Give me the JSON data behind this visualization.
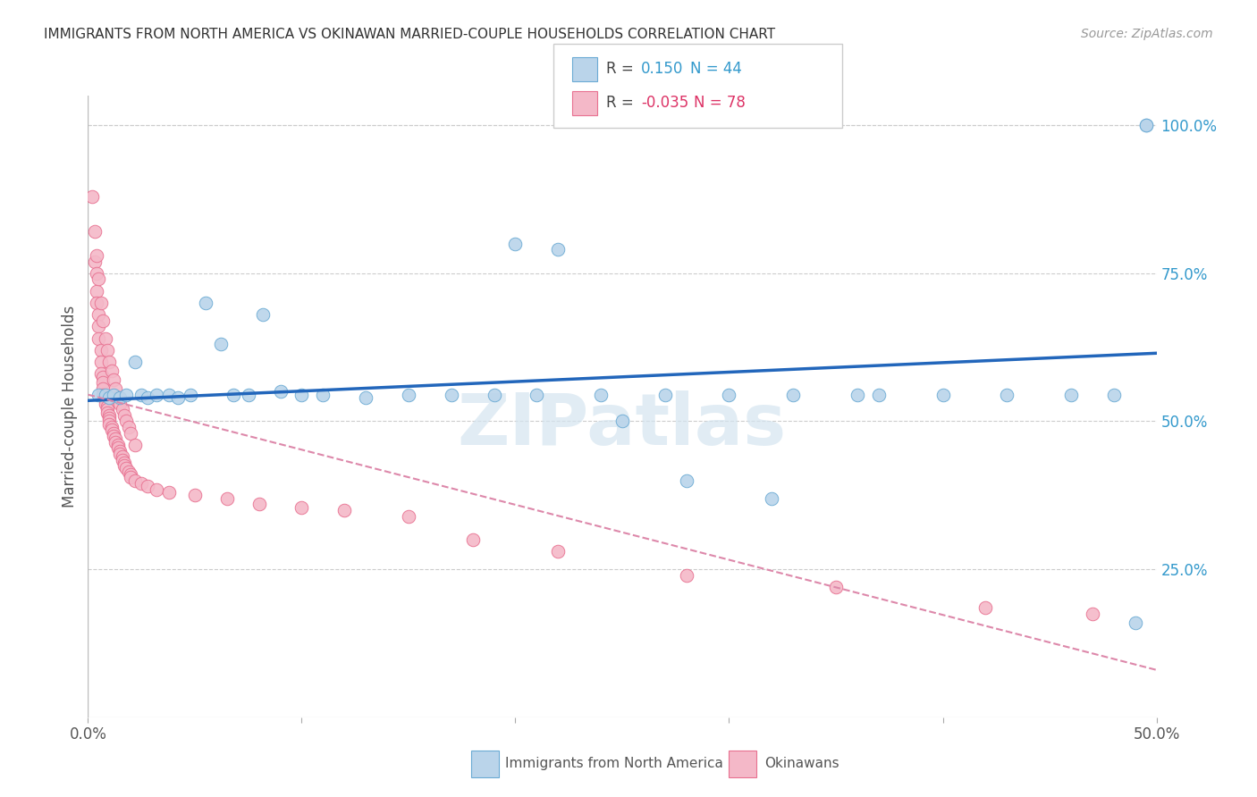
{
  "title": "IMMIGRANTS FROM NORTH AMERICA VS OKINAWAN MARRIED-COUPLE HOUSEHOLDS CORRELATION CHART",
  "source": "Source: ZipAtlas.com",
  "ylabel": "Married-couple Households",
  "right_yticks": [
    "100.0%",
    "75.0%",
    "50.0%",
    "25.0%"
  ],
  "right_ytick_vals": [
    1.0,
    0.75,
    0.5,
    0.25
  ],
  "legend_label_blue": "Immigrants from North America",
  "legend_label_pink": "Okinawans",
  "blue_color": "#bad4ea",
  "pink_color": "#f4b8c8",
  "blue_edge_color": "#6aaad4",
  "pink_edge_color": "#e87090",
  "blue_line_color": "#2266bb",
  "pink_line_color": "#dd88aa",
  "title_color": "#333333",
  "right_tick_color": "#3399cc",
  "blue_r_color": "#3399cc",
  "pink_r_color": "#dd3366",
  "blue_dots_x": [
    0.005,
    0.008,
    0.01,
    0.012,
    0.015,
    0.018,
    0.022,
    0.025,
    0.028,
    0.032,
    0.038,
    0.042,
    0.048,
    0.055,
    0.062,
    0.068,
    0.075,
    0.082,
    0.09,
    0.1,
    0.11,
    0.13,
    0.15,
    0.17,
    0.19,
    0.21,
    0.24,
    0.27,
    0.3,
    0.33,
    0.37,
    0.4,
    0.43,
    0.46,
    0.2,
    0.22,
    0.28,
    0.32,
    0.36,
    0.25,
    0.48,
    0.49,
    0.495,
    0.495
  ],
  "blue_dots_y": [
    0.545,
    0.545,
    0.54,
    0.545,
    0.54,
    0.545,
    0.6,
    0.545,
    0.54,
    0.545,
    0.545,
    0.54,
    0.545,
    0.7,
    0.63,
    0.545,
    0.545,
    0.68,
    0.55,
    0.545,
    0.545,
    0.54,
    0.545,
    0.545,
    0.545,
    0.545,
    0.545,
    0.545,
    0.545,
    0.545,
    0.545,
    0.545,
    0.545,
    0.545,
    0.8,
    0.79,
    0.4,
    0.37,
    0.545,
    0.5,
    0.545,
    0.16,
    1.0,
    1.0
  ],
  "pink_dots_x": [
    0.002,
    0.003,
    0.003,
    0.004,
    0.004,
    0.004,
    0.005,
    0.005,
    0.005,
    0.006,
    0.006,
    0.006,
    0.007,
    0.007,
    0.007,
    0.007,
    0.008,
    0.008,
    0.008,
    0.009,
    0.009,
    0.009,
    0.01,
    0.01,
    0.01,
    0.01,
    0.011,
    0.011,
    0.012,
    0.012,
    0.013,
    0.013,
    0.014,
    0.014,
    0.015,
    0.015,
    0.016,
    0.016,
    0.017,
    0.017,
    0.018,
    0.019,
    0.02,
    0.02,
    0.022,
    0.025,
    0.028,
    0.032,
    0.038,
    0.05,
    0.065,
    0.08,
    0.1,
    0.12,
    0.15,
    0.18,
    0.22,
    0.28,
    0.35,
    0.42,
    0.47,
    0.004,
    0.005,
    0.006,
    0.007,
    0.008,
    0.009,
    0.01,
    0.011,
    0.012,
    0.013,
    0.014,
    0.015,
    0.016,
    0.017,
    0.018,
    0.019,
    0.02,
    0.022
  ],
  "pink_dots_y": [
    0.88,
    0.82,
    0.77,
    0.75,
    0.72,
    0.7,
    0.68,
    0.66,
    0.64,
    0.62,
    0.6,
    0.58,
    0.575,
    0.565,
    0.555,
    0.545,
    0.54,
    0.535,
    0.53,
    0.525,
    0.52,
    0.515,
    0.51,
    0.505,
    0.5,
    0.495,
    0.49,
    0.485,
    0.48,
    0.475,
    0.47,
    0.465,
    0.46,
    0.455,
    0.45,
    0.445,
    0.44,
    0.435,
    0.43,
    0.425,
    0.42,
    0.415,
    0.41,
    0.405,
    0.4,
    0.395,
    0.39,
    0.385,
    0.38,
    0.375,
    0.37,
    0.36,
    0.355,
    0.35,
    0.34,
    0.3,
    0.28,
    0.24,
    0.22,
    0.185,
    0.175,
    0.78,
    0.74,
    0.7,
    0.67,
    0.64,
    0.62,
    0.6,
    0.585,
    0.57,
    0.555,
    0.54,
    0.53,
    0.52,
    0.51,
    0.5,
    0.49,
    0.48,
    0.46
  ],
  "xlim": [
    0.0,
    0.5
  ],
  "ylim": [
    0.0,
    1.05
  ],
  "blue_trend_x0": 0.0,
  "blue_trend_x1": 0.5,
  "blue_trend_y0": 0.535,
  "blue_trend_y1": 0.615,
  "pink_trend_x0": 0.0,
  "pink_trend_x1": 0.5,
  "pink_trend_y0": 0.545,
  "pink_trend_y1": 0.08,
  "background_color": "#ffffff",
  "grid_color": "#cccccc",
  "watermark": "ZIPatlas",
  "watermark_color": "#d5e5f0"
}
